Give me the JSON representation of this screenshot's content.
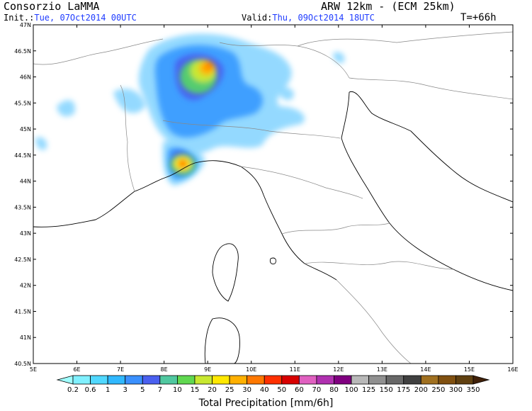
{
  "header": {
    "organization": "Consorzio LaMMA",
    "model": "ARW 12km - (ECM 25km)",
    "init_label": "Init.:",
    "init_value": "Tue, 07Oct2014 00UTC",
    "valid_label": "Valid:",
    "valid_value": "Thu, 09Oct2014 18UTC",
    "forecast_step": "T=+66h"
  },
  "map": {
    "lat_ticks": [
      "47N",
      "46.5N",
      "46N",
      "45.5N",
      "45N",
      "44.5N",
      "44N",
      "43.5N",
      "43N",
      "42.5N",
      "42N",
      "41.5N",
      "41N",
      "40.5N"
    ],
    "lon_ticks": [
      "5E",
      "6E",
      "7E",
      "8E",
      "9E",
      "10E",
      "11E",
      "12E",
      "13E",
      "14E",
      "15E",
      "16E"
    ],
    "lat_range": [
      40.5,
      47
    ],
    "lon_range": [
      5,
      16
    ]
  },
  "colorbar": {
    "labels": [
      "0.2",
      "0.6",
      "1",
      "3",
      "5",
      "7",
      "10",
      "15",
      "20",
      "25",
      "30",
      "40",
      "50",
      "60",
      "70",
      "80",
      "100",
      "125",
      "150",
      "175",
      "200",
      "250",
      "300",
      "350"
    ],
    "colors": [
      "#a0ffff",
      "#80f0ff",
      "#50d8ff",
      "#30b8ff",
      "#3a90ff",
      "#4a60f0",
      "#50c8a0",
      "#60d850",
      "#c8e830",
      "#ffe800",
      "#ffb000",
      "#ff7800",
      "#ff3000",
      "#d80000",
      "#e060c0",
      "#b030b0",
      "#800080",
      "#b8b8b8",
      "#909090",
      "#686868",
      "#404040",
      "#a07020",
      "#805010",
      "#604010",
      "#402008"
    ],
    "title": "Total Precipitation [mm/6h]"
  },
  "colors": {
    "accent_blue": "#1f3cff"
  }
}
